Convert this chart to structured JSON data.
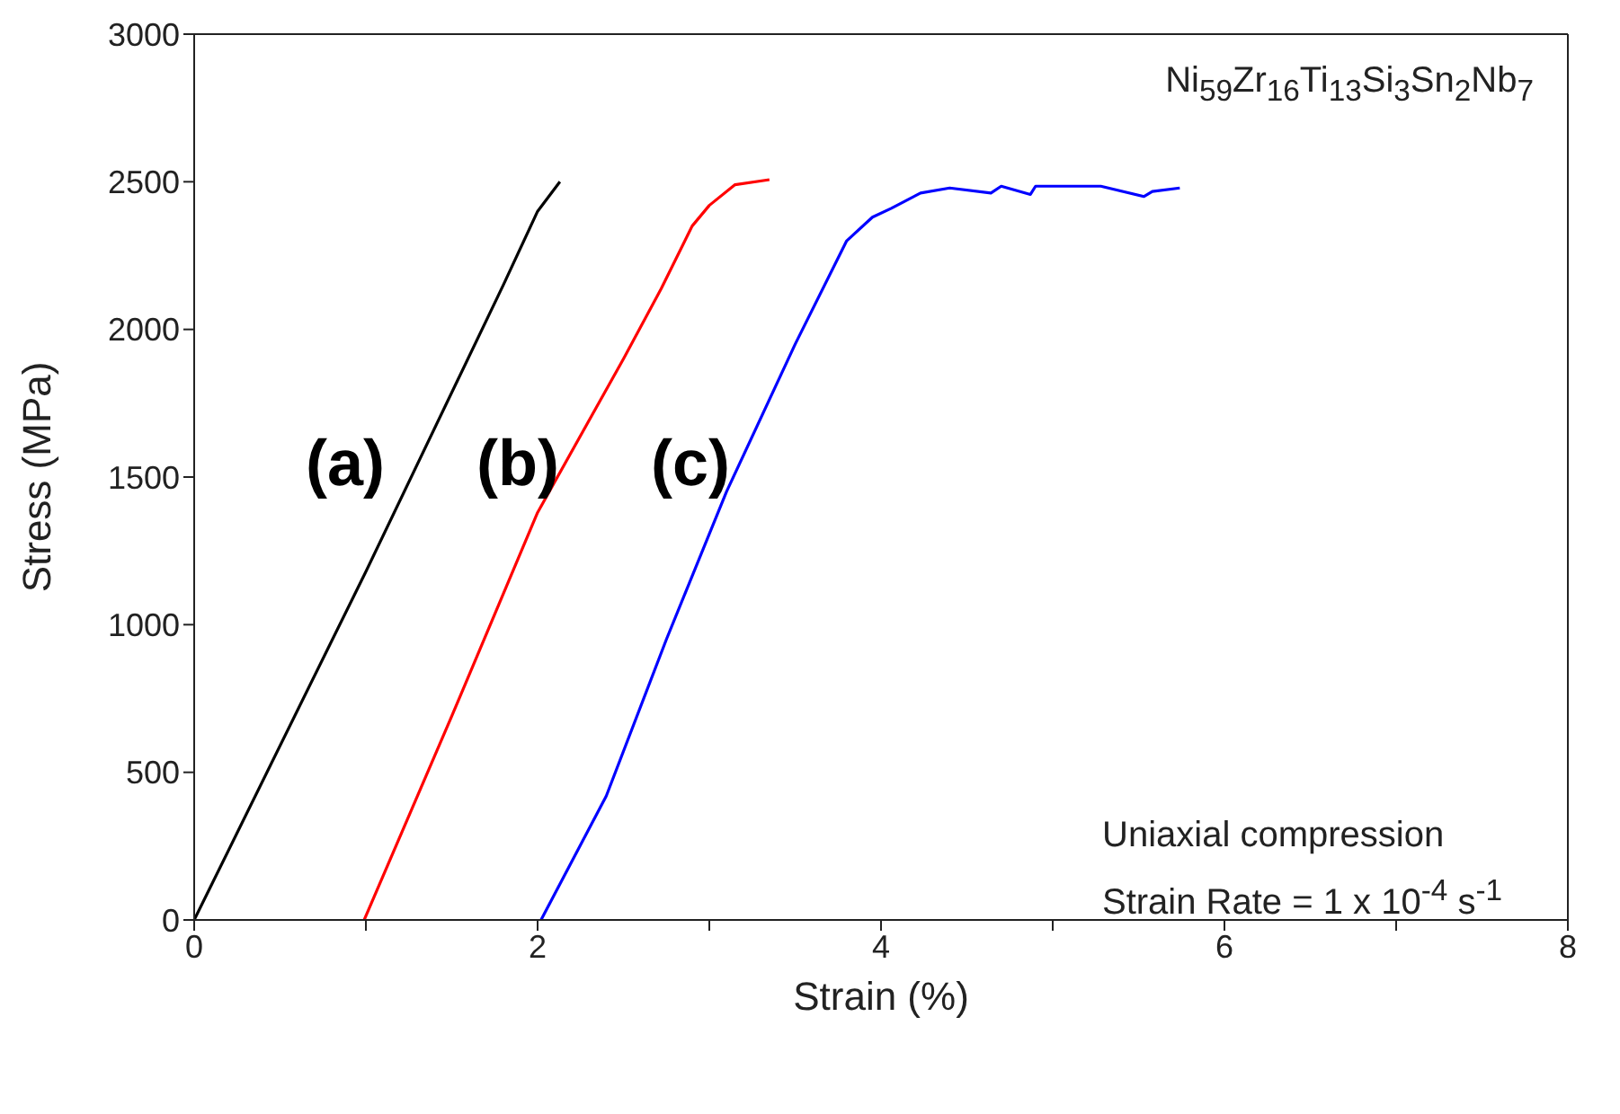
{
  "chart_data": {
    "type": "line",
    "xlabel": "Strain (%)",
    "ylabel": "Stress (MPa)",
    "xlim": [
      0,
      8
    ],
    "xticks": [
      0,
      {
        "value": 1,
        "label": null
      },
      2,
      {
        "value": 3,
        "label": null
      },
      4,
      {
        "value": 5,
        "label": null
      },
      6,
      {
        "value": 7,
        "label": null
      },
      8
    ],
    "ylim": [
      0,
      3000
    ],
    "yticks": [
      0,
      500,
      1000,
      1500,
      2000,
      2500,
      3000
    ],
    "series": [
      {
        "color": "#000000",
        "x": [
          0,
          1,
          1.8,
          2.0,
          2.13
        ],
        "values": [
          0,
          1180,
          2150,
          2400,
          2500
        ]
      },
      {
        "color": "#ff0000",
        "x": [
          0.99,
          1.5,
          2.0,
          2.5,
          2.72,
          2.9,
          3.0,
          3.15,
          3.35
        ],
        "values": [
          0,
          690,
          1380,
          1900,
          2138,
          2350,
          2420,
          2490,
          2507
        ]
      },
      {
        "color": "#0000ff",
        "x": [
          2.02,
          2.4,
          2.75,
          3.1,
          3.5,
          3.8,
          3.95,
          4.06,
          4.23,
          4.4,
          4.64,
          4.7,
          4.87,
          4.9,
          5.28,
          5.53,
          5.58,
          5.74
        ],
        "values": [
          0,
          420,
          950,
          1450,
          1950,
          2300,
          2380,
          2410,
          2462,
          2479,
          2462,
          2485,
          2457,
          2485,
          2485,
          2450,
          2467,
          2479
        ]
      }
    ],
    "annotations": [
      "(a)",
      "(b)",
      "(c)",
      "Ni$_{59}$Zr$_{16}$Ti$_{13}$Si$_{3}$Sn$_{2}$Nb$_{7}$",
      "Uniaxial compression",
      "Strain Rate = 1 x 10$^{-4}$ s$^{-1}$"
    ]
  }
}
